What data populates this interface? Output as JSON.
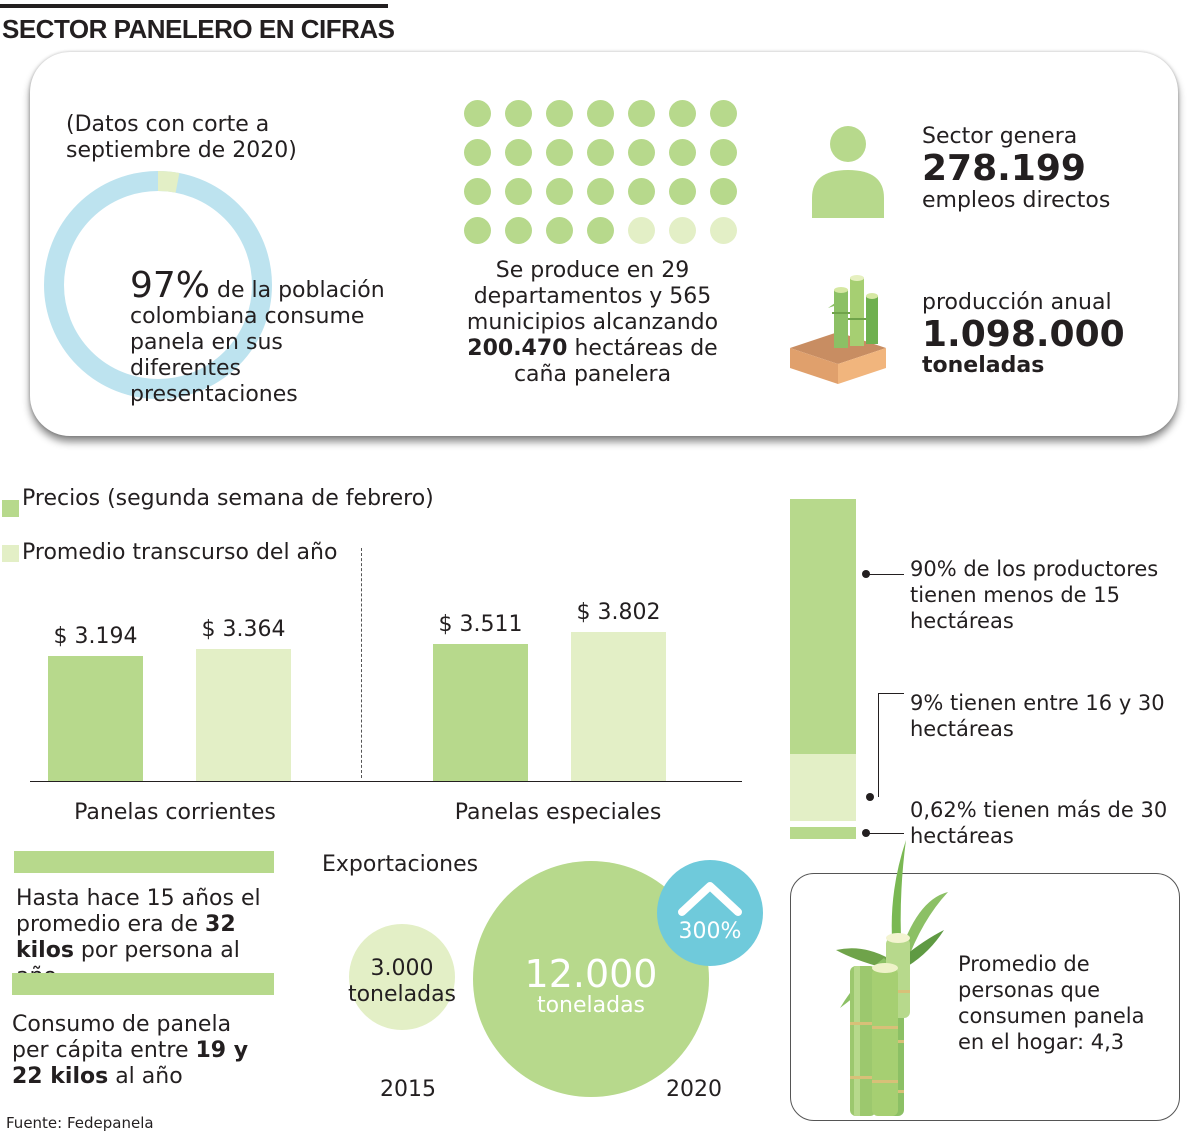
{
  "title": "SECTOR PANELERO EN CIFRAS",
  "card": {
    "note": "(Datos con corte a septiembre de 2020)",
    "donut": {
      "percent": 97,
      "label_big": "97%",
      "label_text": "de la población colombiana consume panela en sus diferentes presentaciones"
    },
    "dots": {
      "total": 28,
      "filled": 25
    },
    "production_lines": [
      "Se produce en 29",
      "departamentos y 565",
      "municipios alcanzando"
    ],
    "hectares_value": "200.470",
    "hectares_rest": "hectáreas de",
    "production_last": "caña panelera",
    "employment": {
      "pre": "Sector genera",
      "value": "278.199",
      "post": "empleos directos"
    },
    "annual": {
      "pre": "producción anual",
      "value": "1.098.000",
      "post": "toneladas"
    }
  },
  "chart_data": [
    {
      "type": "bar",
      "categories": [
        "Panelas corrientes",
        "Panelas especiales"
      ],
      "series": [
        {
          "name": "Precios (segunda semana  de febrero)",
          "values": [
            3194,
            3511
          ],
          "labels": [
            "$ 3.194",
            "$ 3.511"
          ],
          "color": "#b7d98c"
        },
        {
          "name": "Promedio transcurso del año",
          "values": [
            3364,
            3802
          ],
          "labels": [
            "$ 3.364",
            "$ 3.802"
          ],
          "color": "#e3efc6"
        }
      ],
      "ylim": [
        0,
        4500
      ],
      "legend": "top-left"
    },
    {
      "type": "bar",
      "stacked": true,
      "unit": "%",
      "segments": [
        {
          "value": 90,
          "text": "90% de los productores tienen menos de 15 hectáreas",
          "color": "#b7d98c"
        },
        {
          "value": 9,
          "text": "9% tienen entre 16 y 30 hectáreas",
          "color": "#e3efc6"
        },
        {
          "value": 0.62,
          "text": "0,62% tienen más de 30 hectáreas",
          "color": "#b7d98c"
        }
      ]
    },
    {
      "type": "scatter",
      "title": "Exportaciones",
      "points": [
        {
          "year": "2015",
          "value": 3000,
          "value_label": "3.000",
          "unit": "toneladas"
        },
        {
          "year": "2020",
          "value": 12000,
          "value_label": "12.000",
          "unit": "toneladas"
        }
      ],
      "growth_badge": "300%"
    }
  ],
  "consumption": {
    "past_lines": [
      "Hasta hace 15 años el",
      "promedio era de"
    ],
    "past_value": "32",
    "past_rest": "kilos por persona al año",
    "current_lines": [
      "Consumo de panela",
      "per cápita entre"
    ],
    "current_value": "19 y",
    "current_value2": "22 kilos",
    "current_rest": "al año"
  },
  "household": {
    "text": "Promedio de personas que consumen panela en el hogar: 4,3"
  },
  "source": "Fuente: Fedepanela",
  "colors": {
    "green": "#b7d98c",
    "light_green": "#e3efc6",
    "donut_blue": "#bde3ef",
    "badge_blue": "#6fcadb"
  }
}
